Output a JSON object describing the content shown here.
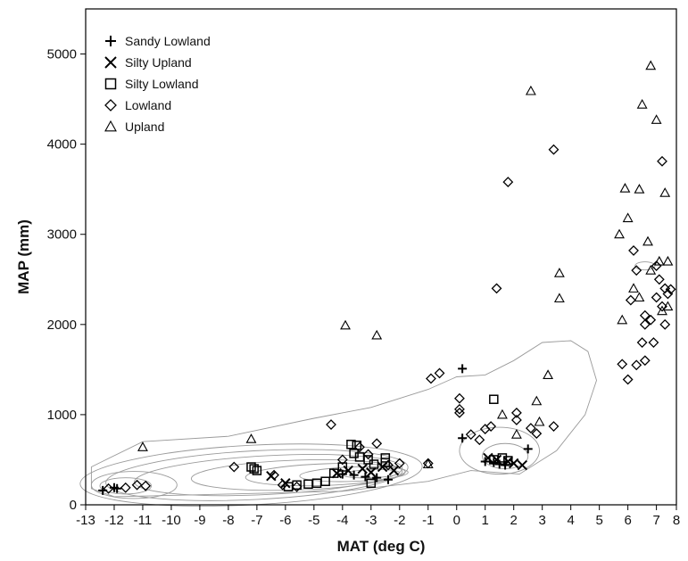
{
  "chart_data": {
    "type": "scatter",
    "title": "",
    "xlabel": "MAT (deg C)",
    "ylabel": "MAP (mm)",
    "xlim": [
      -13,
      7.7
    ],
    "ylim": [
      0,
      5500
    ],
    "xticks": [
      -13,
      -12,
      -11,
      -10,
      -9,
      -8,
      -7,
      -6,
      -5,
      -4,
      -3,
      -2,
      -1,
      0,
      1,
      2,
      3,
      4,
      5,
      6,
      7,
      8
    ],
    "yticks": [
      0,
      1000,
      2000,
      3000,
      4000,
      5000
    ],
    "grid": false,
    "legend_position": "top-left",
    "background": "density contour lines (kernel density of station climate space)",
    "series": [
      {
        "name": "Sandy Lowland",
        "marker": "plus",
        "points": [
          [
            -12.4,
            160
          ],
          [
            -12.0,
            190
          ],
          [
            -11.9,
            180
          ],
          [
            -4.0,
            340
          ],
          [
            -3.6,
            330
          ],
          [
            -3.2,
            310
          ],
          [
            -2.8,
            300
          ],
          [
            -2.4,
            280
          ],
          [
            0.2,
            1510
          ],
          [
            0.2,
            740
          ],
          [
            1.0,
            480
          ],
          [
            1.3,
            470
          ],
          [
            1.5,
            450
          ],
          [
            1.7,
            440
          ],
          [
            2.5,
            620
          ]
        ]
      },
      {
        "name": "Silty Upland",
        "marker": "x",
        "points": [
          [
            -6.5,
            320
          ],
          [
            -6.0,
            240
          ],
          [
            -4.2,
            350
          ],
          [
            -3.8,
            380
          ],
          [
            -3.3,
            400
          ],
          [
            -3.0,
            360
          ],
          [
            -2.6,
            420
          ],
          [
            -2.2,
            380
          ],
          [
            1.1,
            520
          ],
          [
            1.4,
            500
          ],
          [
            1.8,
            480
          ],
          [
            2.0,
            460
          ],
          [
            2.3,
            440
          ]
        ]
      },
      {
        "name": "Silty Lowland",
        "marker": "square",
        "points": [
          [
            -7.2,
            420
          ],
          [
            -7.1,
            400
          ],
          [
            -7.0,
            380
          ],
          [
            -5.9,
            200
          ],
          [
            -5.6,
            220
          ],
          [
            -5.2,
            230
          ],
          [
            -4.9,
            240
          ],
          [
            -4.6,
            260
          ],
          [
            -4.3,
            350
          ],
          [
            -4.0,
            420
          ],
          [
            -3.7,
            670
          ],
          [
            -3.5,
            660
          ],
          [
            -3.6,
            570
          ],
          [
            -3.4,
            530
          ],
          [
            -3.1,
            500
          ],
          [
            -3.0,
            240
          ],
          [
            -2.9,
            450
          ],
          [
            -2.5,
            470
          ],
          [
            -2.5,
            520
          ],
          [
            1.3,
            1170
          ],
          [
            1.3,
            500
          ],
          [
            1.6,
            520
          ],
          [
            1.8,
            490
          ]
        ]
      },
      {
        "name": "Lowland",
        "marker": "diamond",
        "points": [
          [
            -12.2,
            180
          ],
          [
            -11.6,
            190
          ],
          [
            -11.2,
            220
          ],
          [
            -10.9,
            210
          ],
          [
            -7.8,
            420
          ],
          [
            -6.4,
            330
          ],
          [
            -6.1,
            220
          ],
          [
            -5.6,
            200
          ],
          [
            -4.4,
            890
          ],
          [
            -4.0,
            500
          ],
          [
            -3.4,
            640
          ],
          [
            -3.1,
            560
          ],
          [
            -2.8,
            680
          ],
          [
            -2.4,
            440
          ],
          [
            -2.0,
            460
          ],
          [
            -1.0,
            460
          ],
          [
            -0.9,
            1400
          ],
          [
            -0.6,
            1460
          ],
          [
            0.1,
            1180
          ],
          [
            0.1,
            1060
          ],
          [
            0.1,
            1020
          ],
          [
            0.5,
            780
          ],
          [
            0.8,
            720
          ],
          [
            1.0,
            840
          ],
          [
            1.2,
            870
          ],
          [
            1.4,
            2400
          ],
          [
            1.8,
            3580
          ],
          [
            2.1,
            1020
          ],
          [
            2.1,
            940
          ],
          [
            2.6,
            850
          ],
          [
            2.8,
            790
          ],
          [
            3.4,
            870
          ],
          [
            3.4,
            3940
          ],
          [
            5.8,
            1560
          ],
          [
            6.0,
            1390
          ],
          [
            6.1,
            2270
          ],
          [
            6.3,
            1550
          ],
          [
            6.5,
            1800
          ],
          [
            6.6,
            2100
          ],
          [
            6.6,
            1600
          ],
          [
            6.8,
            2050
          ],
          [
            6.9,
            1800
          ],
          [
            7.0,
            2650
          ],
          [
            7.1,
            2500
          ],
          [
            7.2,
            3810
          ],
          [
            7.2,
            2200
          ],
          [
            7.3,
            2400
          ],
          [
            7.3,
            2000
          ],
          [
            7.4,
            2340
          ],
          [
            7.5,
            2390
          ],
          [
            6.2,
            2820
          ],
          [
            6.3,
            2600
          ],
          [
            6.6,
            2000
          ],
          [
            7.0,
            2300
          ]
        ]
      },
      {
        "name": "Upland",
        "marker": "triangle",
        "points": [
          [
            -11.0,
            640
          ],
          [
            -7.2,
            730
          ],
          [
            -3.9,
            1990
          ],
          [
            -2.8,
            1880
          ],
          [
            -1.0,
            450
          ],
          [
            1.6,
            1000
          ],
          [
            2.1,
            780
          ],
          [
            2.6,
            4590
          ],
          [
            2.8,
            1150
          ],
          [
            2.9,
            920
          ],
          [
            3.2,
            1440
          ],
          [
            3.6,
            2570
          ],
          [
            3.6,
            2290
          ],
          [
            5.7,
            3000
          ],
          [
            5.8,
            2050
          ],
          [
            5.9,
            3510
          ],
          [
            6.0,
            3180
          ],
          [
            6.2,
            2400
          ],
          [
            6.4,
            2300
          ],
          [
            6.4,
            3500
          ],
          [
            6.5,
            4440
          ],
          [
            6.7,
            2920
          ],
          [
            6.8,
            4870
          ],
          [
            6.8,
            2600
          ],
          [
            7.0,
            4270
          ],
          [
            7.1,
            2700
          ],
          [
            7.2,
            2150
          ],
          [
            7.3,
            3460
          ],
          [
            7.4,
            2700
          ],
          [
            7.4,
            2200
          ]
        ]
      }
    ]
  }
}
